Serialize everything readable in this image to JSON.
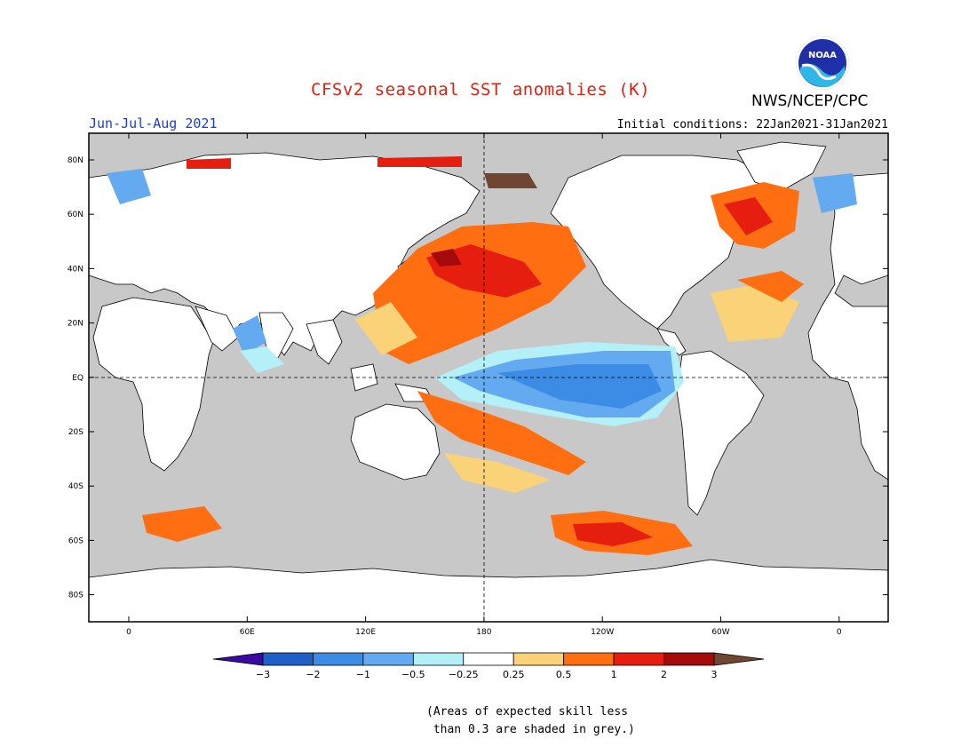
{
  "title": "CFSv2 seasonal SST anomalies (K)",
  "season": "Jun-Jul-Aug 2021",
  "initial_conditions": "Initial conditions: 22Jan2021-31Jan2021",
  "agency": "NWS/NCEP/CPC",
  "logo": {
    "text": "NOAA"
  },
  "map": {
    "latitude_labels": [
      "80N",
      "60N",
      "40N",
      "20N",
      "EQ",
      "20S",
      "40S",
      "60S",
      "80S"
    ],
    "longitude_labels": [
      "0",
      "60E",
      "120E",
      "180",
      "120W",
      "60W",
      "0"
    ]
  },
  "colorbar": {
    "colors": [
      "#3a0aa0",
      "#1e5fc8",
      "#3c8ce6",
      "#64aaf0",
      "#b4f0f8",
      "#ffffff",
      "#fad278",
      "#ff6e10",
      "#e61e10",
      "#a50a0a",
      "#6e4632"
    ],
    "labels": [
      "-3",
      "-2",
      "-1",
      "-0.5",
      "-0.25",
      "0.25",
      "0.5",
      "1",
      "2",
      "3"
    ]
  },
  "note_line1": "(Areas of expected skill less",
  "note_line2": " than 0.3 are shaded in grey.)"
}
